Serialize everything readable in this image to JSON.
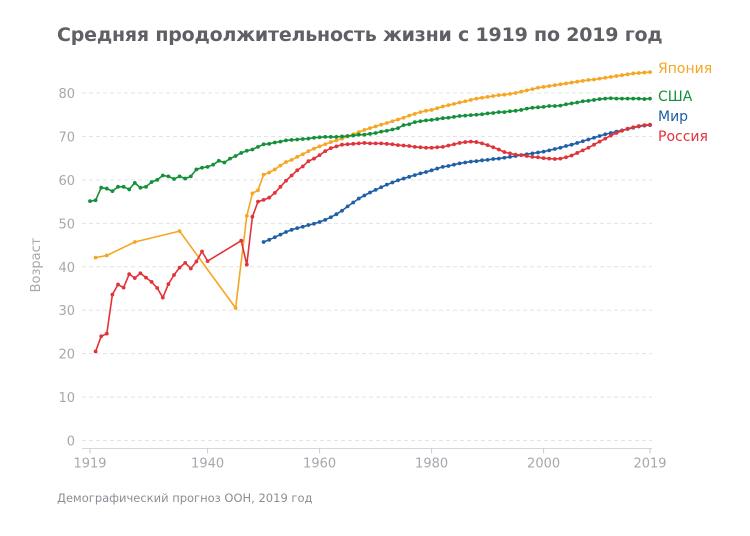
{
  "title": "Средняя продолжительность жизни с 1919 по 2019 год",
  "source": "Демографический прогноз ООН, 2019 год",
  "chart_data": {
    "type": "line",
    "title": "Средняя продолжительность жизни с 1919 по 2019 год",
    "xlabel": "",
    "ylabel": "Возраст",
    "xlim": [
      1919,
      2019
    ],
    "ylim": [
      0,
      85
    ],
    "x_ticks": [
      1919,
      1940,
      1960,
      1980,
      2000,
      2019
    ],
    "x_tick_labels": [
      "1919",
      "1940",
      "1960",
      "1980",
      "2000",
      "2019"
    ],
    "y_ticks": [
      0,
      10,
      20,
      30,
      40,
      50,
      60,
      70,
      80
    ],
    "y_tick_labels": [
      "0",
      "10",
      "20",
      "30",
      "40",
      "50",
      "60",
      "70",
      "80"
    ],
    "grid": "horizontal-dashed",
    "legend_position": "right-end-of-lines",
    "series": [
      {
        "name": "Япония",
        "color": "#f5a623",
        "x": [
          1920,
          1922,
          1927,
          1935,
          1945,
          1947,
          1948,
          1949,
          1950,
          1951,
          1952,
          1953,
          1954,
          1955,
          1956,
          1957,
          1958,
          1959,
          1960,
          1961,
          1962,
          1963,
          1964,
          1965,
          1966,
          1967,
          1968,
          1969,
          1970,
          1971,
          1972,
          1973,
          1974,
          1975,
          1976,
          1977,
          1978,
          1979,
          1980,
          1981,
          1982,
          1983,
          1984,
          1985,
          1986,
          1987,
          1988,
          1989,
          1990,
          1991,
          1992,
          1993,
          1994,
          1995,
          1996,
          1997,
          1998,
          1999,
          2000,
          2001,
          2002,
          2003,
          2004,
          2005,
          2006,
          2007,
          2008,
          2009,
          2010,
          2011,
          2012,
          2013,
          2014,
          2015,
          2016,
          2017,
          2018,
          2019
        ],
        "y": [
          42.1,
          42.6,
          45.7,
          48.2,
          30.5,
          51.7,
          56.9,
          57.6,
          61.2,
          61.7,
          62.4,
          63.3,
          64.1,
          64.6,
          65.3,
          65.9,
          66.6,
          67.2,
          67.7,
          68.2,
          68.7,
          69.1,
          69.5,
          70.0,
          70.5,
          71.0,
          71.5,
          71.9,
          72.3,
          72.7,
          73.1,
          73.5,
          73.9,
          74.3,
          74.8,
          75.2,
          75.6,
          75.9,
          76.1,
          76.5,
          76.9,
          77.2,
          77.5,
          77.8,
          78.1,
          78.4,
          78.7,
          78.9,
          79.1,
          79.3,
          79.5,
          79.6,
          79.8,
          80.0,
          80.3,
          80.6,
          80.9,
          81.2,
          81.4,
          81.6,
          81.8,
          82.0,
          82.2,
          82.4,
          82.6,
          82.8,
          83.0,
          83.1,
          83.3,
          83.5,
          83.7,
          83.9,
          84.1,
          84.3,
          84.5,
          84.6,
          84.7,
          84.8
        ]
      },
      {
        "name": "США",
        "color": "#15903a",
        "x": [
          1919,
          1920,
          1921,
          1922,
          1923,
          1924,
          1925,
          1926,
          1927,
          1928,
          1929,
          1930,
          1931,
          1932,
          1933,
          1934,
          1935,
          1936,
          1937,
          1938,
          1939,
          1940,
          1941,
          1942,
          1943,
          1944,
          1945,
          1946,
          1947,
          1948,
          1949,
          1950,
          1951,
          1952,
          1953,
          1954,
          1955,
          1956,
          1957,
          1958,
          1959,
          1960,
          1961,
          1962,
          1963,
          1964,
          1965,
          1966,
          1967,
          1968,
          1969,
          1970,
          1971,
          1972,
          1973,
          1974,
          1975,
          1976,
          1977,
          1978,
          1979,
          1980,
          1981,
          1982,
          1983,
          1984,
          1985,
          1986,
          1987,
          1988,
          1989,
          1990,
          1991,
          1992,
          1993,
          1994,
          1995,
          1996,
          1997,
          1998,
          1999,
          2000,
          2001,
          2002,
          2003,
          2004,
          2005,
          2006,
          2007,
          2008,
          2009,
          2010,
          2011,
          2012,
          2013,
          2014,
          2015,
          2016,
          2017,
          2018,
          2019
        ],
        "y": [
          55.1,
          55.3,
          58.2,
          58.0,
          57.4,
          58.4,
          58.4,
          57.8,
          59.3,
          58.2,
          58.4,
          59.5,
          60.0,
          61.0,
          60.8,
          60.2,
          60.8,
          60.3,
          60.8,
          62.4,
          62.8,
          63.0,
          63.5,
          64.4,
          64.0,
          64.9,
          65.5,
          66.2,
          66.7,
          67.0,
          67.6,
          68.2,
          68.3,
          68.6,
          68.8,
          69.1,
          69.2,
          69.3,
          69.4,
          69.5,
          69.7,
          69.8,
          69.9,
          69.9,
          69.9,
          70.0,
          70.1,
          70.2,
          70.4,
          70.4,
          70.6,
          70.8,
          71.1,
          71.3,
          71.6,
          71.9,
          72.6,
          72.8,
          73.3,
          73.5,
          73.7,
          73.8,
          74.0,
          74.2,
          74.3,
          74.5,
          74.7,
          74.8,
          74.9,
          75.0,
          75.1,
          75.3,
          75.4,
          75.6,
          75.6,
          75.8,
          75.9,
          76.1,
          76.4,
          76.6,
          76.7,
          76.8,
          77.0,
          77.0,
          77.1,
          77.4,
          77.6,
          77.8,
          78.1,
          78.2,
          78.4,
          78.6,
          78.7,
          78.8,
          78.7,
          78.7,
          78.7,
          78.7,
          78.7,
          78.6,
          78.7
        ]
      },
      {
        "name": "Мир",
        "color": "#1f5fa6",
        "x": [
          1950,
          1951,
          1952,
          1953,
          1954,
          1955,
          1956,
          1957,
          1958,
          1959,
          1960,
          1961,
          1962,
          1963,
          1964,
          1965,
          1966,
          1967,
          1968,
          1969,
          1970,
          1971,
          1972,
          1973,
          1974,
          1975,
          1976,
          1977,
          1978,
          1979,
          1980,
          1981,
          1982,
          1983,
          1984,
          1985,
          1986,
          1987,
          1988,
          1989,
          1990,
          1991,
          1992,
          1993,
          1994,
          1995,
          1996,
          1997,
          1998,
          1999,
          2000,
          2001,
          2002,
          2003,
          2004,
          2005,
          2006,
          2007,
          2008,
          2009,
          2010,
          2011,
          2012,
          2013,
          2014,
          2015,
          2016,
          2017,
          2018,
          2019
        ],
        "y": [
          45.7,
          46.2,
          46.8,
          47.4,
          48.0,
          48.5,
          48.9,
          49.2,
          49.6,
          49.9,
          50.3,
          50.8,
          51.4,
          52.1,
          52.9,
          53.9,
          54.8,
          55.7,
          56.4,
          57.1,
          57.7,
          58.3,
          58.9,
          59.4,
          59.9,
          60.3,
          60.7,
          61.1,
          61.5,
          61.8,
          62.2,
          62.6,
          63.0,
          63.2,
          63.5,
          63.8,
          64.0,
          64.2,
          64.3,
          64.5,
          64.6,
          64.8,
          64.9,
          65.1,
          65.3,
          65.5,
          65.7,
          65.9,
          66.1,
          66.3,
          66.5,
          66.8,
          67.1,
          67.4,
          67.8,
          68.1,
          68.5,
          68.9,
          69.3,
          69.7,
          70.1,
          70.5,
          70.8,
          71.1,
          71.4,
          71.7,
          72.0,
          72.3,
          72.5,
          72.6
        ]
      },
      {
        "name": "Россия",
        "color": "#e0333a",
        "x": [
          1920,
          1921,
          1922,
          1923,
          1924,
          1925,
          1926,
          1927,
          1928,
          1929,
          1930,
          1931,
          1932,
          1933,
          1934,
          1935,
          1936,
          1937,
          1938,
          1939,
          1940,
          1946,
          1947,
          1948,
          1949,
          1950,
          1951,
          1952,
          1953,
          1954,
          1955,
          1956,
          1957,
          1958,
          1959,
          1960,
          1961,
          1962,
          1963,
          1964,
          1965,
          1966,
          1967,
          1968,
          1969,
          1970,
          1971,
          1972,
          1973,
          1974,
          1975,
          1976,
          1977,
          1978,
          1979,
          1980,
          1981,
          1982,
          1983,
          1984,
          1985,
          1986,
          1987,
          1988,
          1989,
          1990,
          1991,
          1992,
          1993,
          1994,
          1995,
          1996,
          1997,
          1998,
          1999,
          2000,
          2001,
          2002,
          2003,
          2004,
          2005,
          2006,
          2007,
          2008,
          2009,
          2010,
          2011,
          2012,
          2013,
          2014,
          2015,
          2016,
          2017,
          2018,
          2019
        ],
        "y": [
          20.5,
          24.0,
          24.6,
          33.6,
          35.9,
          35.2,
          38.3,
          37.4,
          38.5,
          37.5,
          36.5,
          35.1,
          32.9,
          36.0,
          38.1,
          39.8,
          40.9,
          39.6,
          41.2,
          43.5,
          41.3,
          46.0,
          40.5,
          51.5,
          55.0,
          55.4,
          55.9,
          57.0,
          58.4,
          59.8,
          61.0,
          62.2,
          63.1,
          64.3,
          64.9,
          65.7,
          66.6,
          67.3,
          67.7,
          68.1,
          68.2,
          68.3,
          68.4,
          68.5,
          68.4,
          68.4,
          68.4,
          68.3,
          68.2,
          68.0,
          67.9,
          67.8,
          67.6,
          67.5,
          67.4,
          67.4,
          67.5,
          67.6,
          67.9,
          68.2,
          68.5,
          68.7,
          68.8,
          68.7,
          68.4,
          68.0,
          67.5,
          67.0,
          66.4,
          66.1,
          65.8,
          65.7,
          65.5,
          65.3,
          65.2,
          65.0,
          64.9,
          64.8,
          64.9,
          65.2,
          65.6,
          66.2,
          66.8,
          67.4,
          68.1,
          68.8,
          69.5,
          70.2,
          70.8,
          71.3,
          71.8,
          72.1,
          72.4,
          72.6,
          72.7
        ]
      }
    ]
  }
}
